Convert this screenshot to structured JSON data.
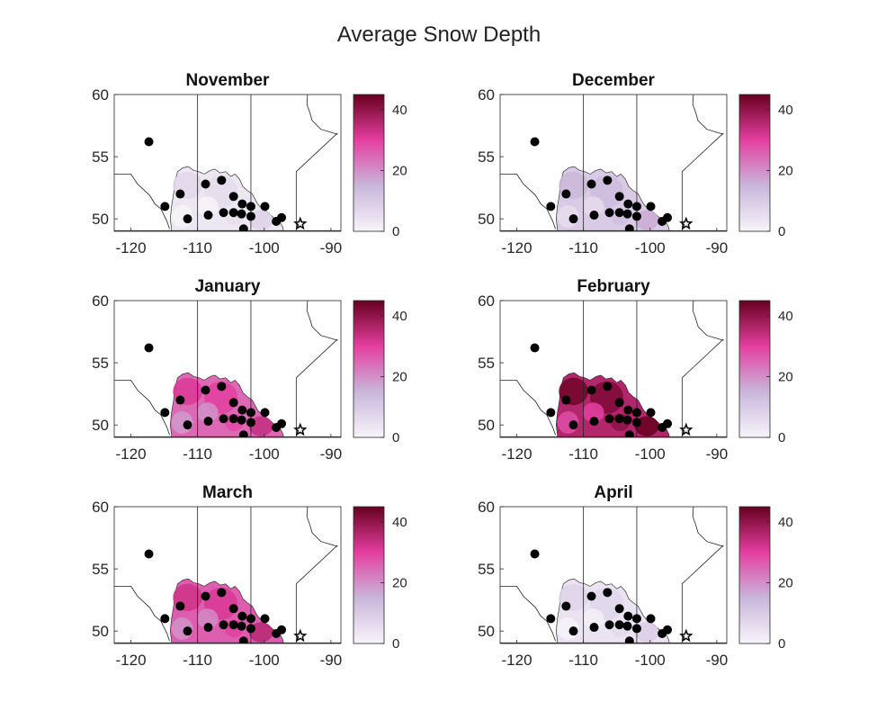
{
  "chart_data": {
    "type": "heatmap",
    "title": "Average Snow Depth",
    "x_ticks": [
      -120,
      -110,
      -100,
      -90
    ],
    "y_ticks": [
      60,
      55,
      50
    ],
    "xlim": [
      -122.5,
      -88.5
    ],
    "ylim": [
      49,
      60
    ],
    "colorbar": {
      "range": [
        0,
        45
      ],
      "ticks": [
        0,
        20,
        40
      ],
      "colors": [
        "#f7f4f9",
        "#c9b6da",
        "#e43fa0",
        "#67001f"
      ]
    },
    "stations": [
      [
        -117.3,
        56.2
      ],
      [
        -114.9,
        51.0
      ],
      [
        -112.6,
        52.0
      ],
      [
        -111.5,
        50.0
      ],
      [
        -108.8,
        52.8
      ],
      [
        -108.4,
        50.3
      ],
      [
        -106.4,
        53.1
      ],
      [
        -106.1,
        50.5
      ],
      [
        -104.6,
        50.5
      ],
      [
        -104.6,
        51.8
      ],
      [
        -103.4,
        50.4
      ],
      [
        -103.3,
        51.2
      ],
      [
        -103.1,
        49.2
      ],
      [
        -102.0,
        51.0
      ],
      [
        -102.0,
        50.2
      ],
      [
        -99.9,
        51.0
      ],
      [
        -98.2,
        49.8
      ],
      [
        -97.4,
        50.1
      ]
    ],
    "star_marker": [
      -94.6,
      49.6
    ],
    "panels": [
      {
        "month": "November",
        "level": 0.07
      },
      {
        "month": "December",
        "level": 0.22
      },
      {
        "month": "January",
        "level": 0.55
      },
      {
        "month": "February",
        "level": 0.8
      },
      {
        "month": "March",
        "level": 0.58
      },
      {
        "month": "April",
        "level": 0.09
      }
    ]
  }
}
